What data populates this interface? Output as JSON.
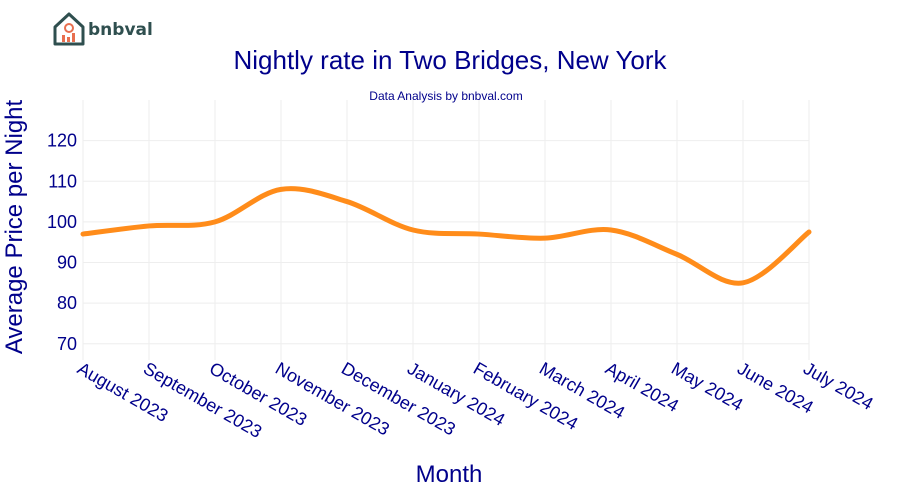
{
  "brand": {
    "name": "bnbval"
  },
  "colors": {
    "title": "#00008b",
    "line": "#ff8c1a",
    "grid": "#eeeeee",
    "logo_dark": "#2f4f4f",
    "logo_accent": "#e86f4f"
  },
  "chart_data": {
    "type": "line",
    "title": "Nightly rate in Two Bridges, New York",
    "subtitle": "Data Analysis by bnbval.com",
    "xlabel": "Month",
    "ylabel": "Average Price per Night",
    "categories": [
      "August 2023",
      "September 2023",
      "October 2023",
      "November 2023",
      "December 2023",
      "January 2024",
      "February 2024",
      "March 2024",
      "April 2024",
      "May 2024",
      "June 2024",
      "July 2024"
    ],
    "series": [
      {
        "values": [
          97,
          99,
          100,
          108,
          105,
          98,
          97,
          96,
          98,
          92,
          85,
          97.5
        ]
      }
    ],
    "ylim": [
      66,
      130
    ],
    "yticks": [
      70,
      80,
      90,
      100,
      110,
      120
    ],
    "grid": true,
    "legend": "none",
    "curve": "smooth"
  }
}
